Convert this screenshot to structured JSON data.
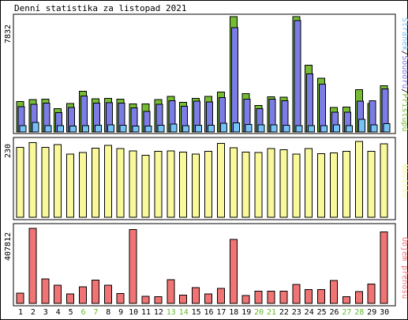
{
  "title": "Denní statistika za listopad 2021",
  "colors": {
    "hits": "#75bb33",
    "files": "#7c7ce6",
    "pages": "#74c2f6",
    "visits": "#f9f99c",
    "kbytes": "#f17474",
    "weekend": "#64b932",
    "weekday": "#000000"
  },
  "chart_data": [
    {
      "type": "bar",
      "name": "hits-files-pages",
      "ymax_label": "7832",
      "ymax": 7832,
      "legend": {
        "series1": "Stránek",
        "sep1": "/",
        "series2": "Souborů",
        "sep2": "/",
        "series3": "Přístupů"
      },
      "categories": [
        "1",
        "2",
        "3",
        "4",
        "5",
        "6",
        "7",
        "8",
        "9",
        "10",
        "11",
        "12",
        "13",
        "14",
        "15",
        "16",
        "17",
        "18",
        "19",
        "20",
        "21",
        "22",
        "23",
        "24",
        "25",
        "26",
        "27",
        "28",
        "29",
        "30"
      ],
      "series": [
        {
          "key": "hits",
          "values": [
            2060,
            2200,
            2230,
            1580,
            1930,
            2760,
            2260,
            2290,
            2230,
            1910,
            1900,
            2200,
            2410,
            2020,
            2270,
            2410,
            2700,
            7880,
            2600,
            1810,
            2380,
            2350,
            7880,
            4520,
            3660,
            1670,
            1700,
            2870,
            1940,
            3140
          ]
        },
        {
          "key": "files",
          "values": [
            1730,
            1880,
            1970,
            1320,
            1670,
            2440,
            1950,
            1990,
            1960,
            1640,
            1390,
            1890,
            2130,
            1740,
            2080,
            2040,
            2330,
            7090,
            2220,
            1580,
            2230,
            2130,
            7560,
            3930,
            3250,
            1330,
            1350,
            2100,
            2120,
            2920
          ]
        },
        {
          "key": "pages",
          "values": [
            420,
            640,
            420,
            430,
            410,
            430,
            460,
            470,
            460,
            390,
            390,
            460,
            540,
            430,
            460,
            450,
            580,
            620,
            520,
            470,
            470,
            450,
            420,
            440,
            440,
            490,
            420,
            860,
            490,
            570
          ]
        }
      ]
    },
    {
      "type": "bar",
      "name": "visits",
      "ymax_label": "230",
      "ymax": 230,
      "legend": {
        "series1": "Návštěv"
      },
      "series": [
        {
          "key": "visits",
          "values": [
            212,
            226,
            212,
            220,
            192,
            196,
            210,
            218,
            208,
            201,
            188,
            200,
            201,
            198,
            192,
            200,
            224,
            211,
            198,
            197,
            208,
            205,
            192,
            208,
            193,
            195,
            200,
            230,
            200,
            223
          ]
        }
      ]
    },
    {
      "type": "bar",
      "name": "kbytes",
      "ymax_label": "407812",
      "ymax": 407812,
      "legend": {
        "series1": "Objem přenosu"
      },
      "series": [
        {
          "key": "kbytes",
          "values": [
            55000,
            403000,
            132000,
            97000,
            50000,
            89000,
            126000,
            98000,
            53000,
            398000,
            38000,
            36000,
            128000,
            45000,
            84000,
            51000,
            80000,
            344000,
            43000,
            66000,
            66000,
            66000,
            103000,
            74000,
            74000,
            124000,
            36000,
            64000,
            104000,
            384000
          ]
        }
      ]
    }
  ],
  "days": [
    "1",
    "2",
    "3",
    "4",
    "5",
    "6",
    "7",
    "8",
    "9",
    "10",
    "11",
    "12",
    "13",
    "14",
    "15",
    "16",
    "17",
    "18",
    "19",
    "20",
    "21",
    "22",
    "23",
    "24",
    "25",
    "26",
    "27",
    "28",
    "29",
    "30"
  ],
  "weekend_days": [
    6,
    7,
    13,
    14,
    20,
    21,
    27,
    28
  ]
}
